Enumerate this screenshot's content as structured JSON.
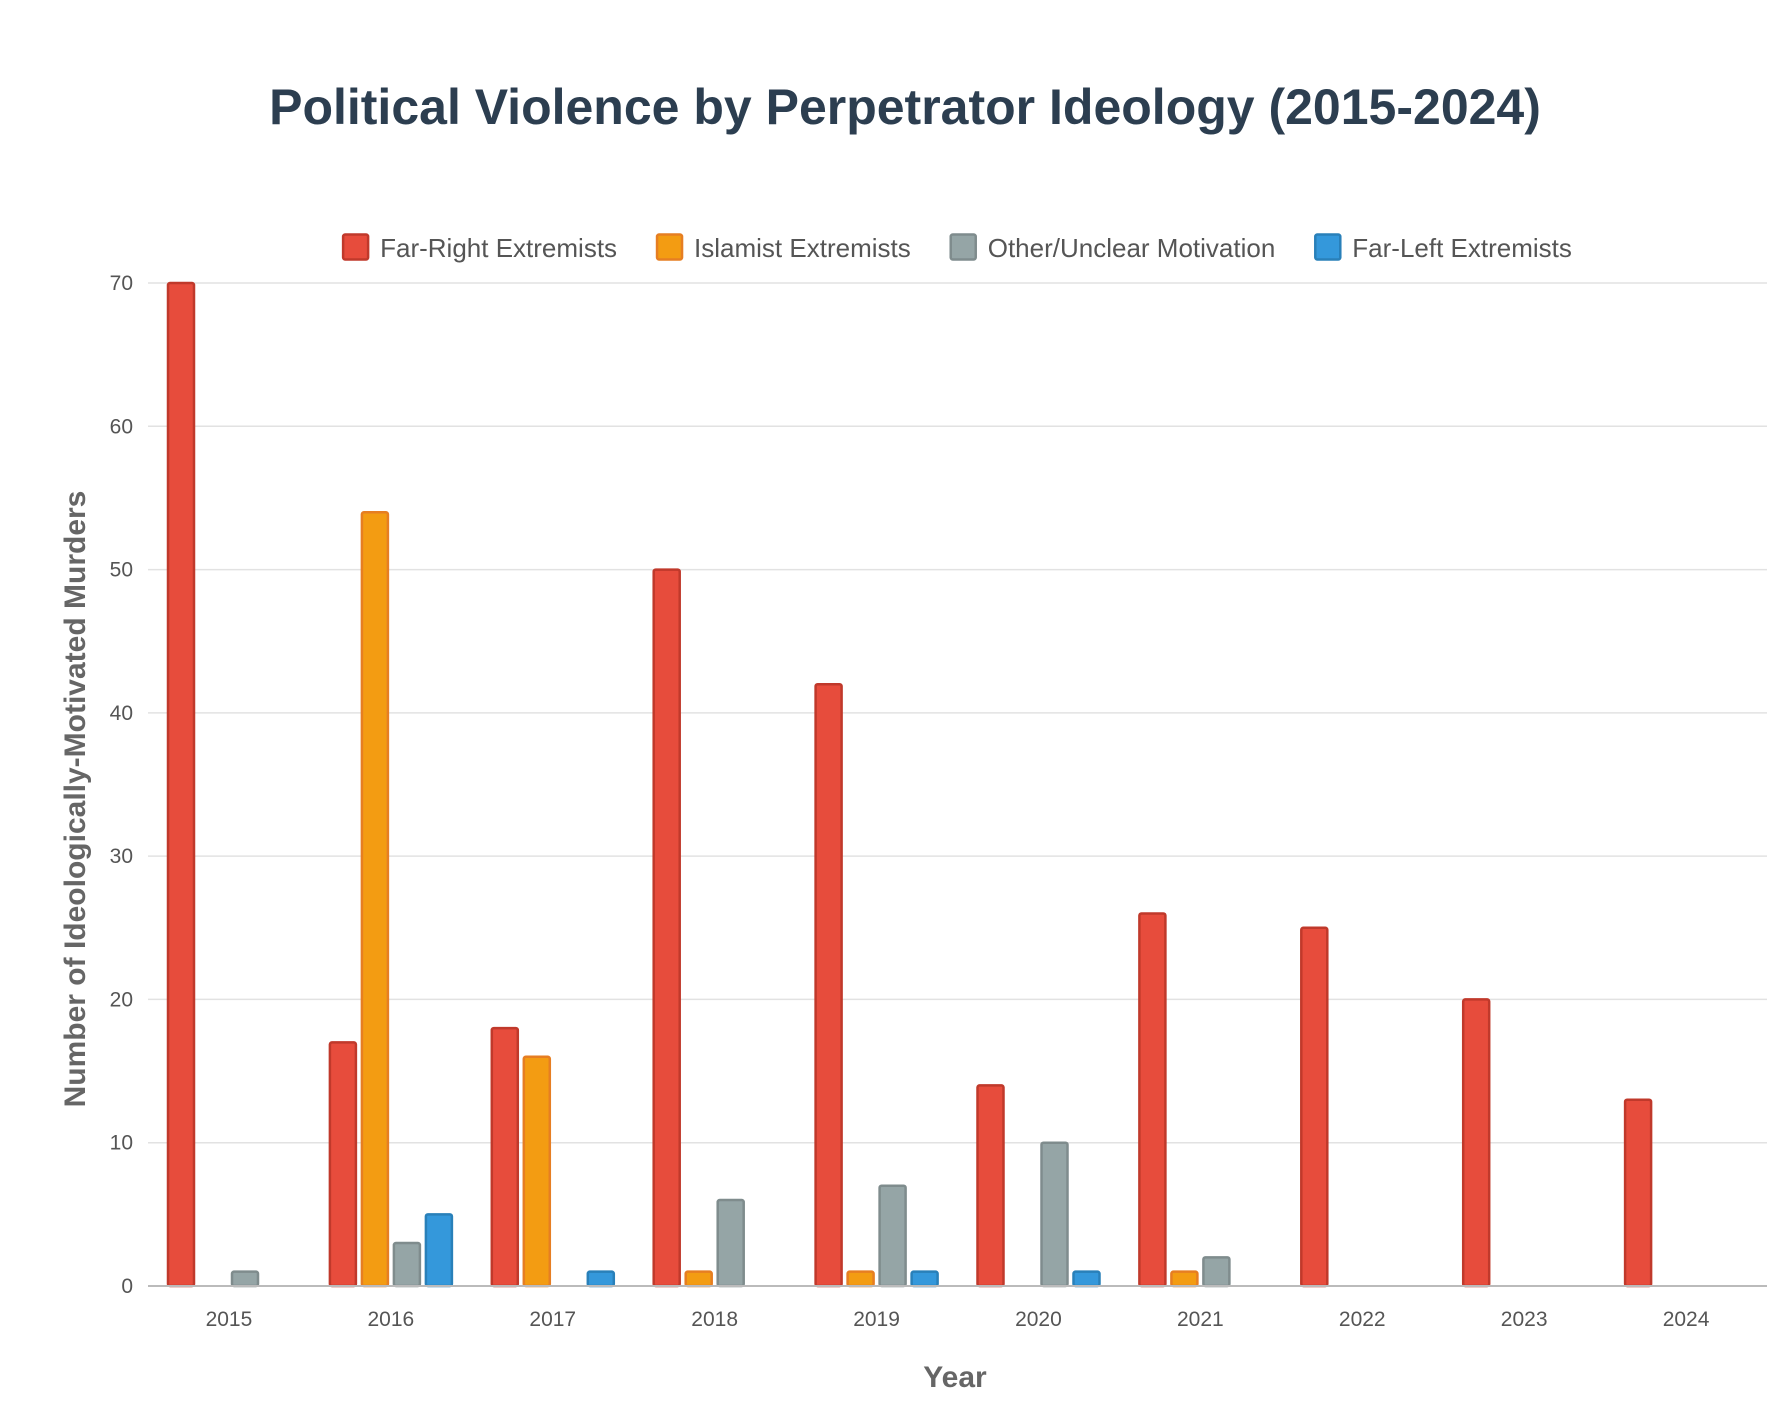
{
  "chart_data": {
    "type": "bar",
    "title": "Political Violence by Perpetrator Ideology (2015-2024)",
    "xlabel": "Year",
    "ylabel": "Number of Ideologically-Motivated Murders",
    "categories": [
      "2015",
      "2016",
      "2017",
      "2018",
      "2019",
      "2020",
      "2021",
      "2022",
      "2023",
      "2024"
    ],
    "ylim": [
      0,
      70
    ],
    "yticks": [
      0,
      10,
      20,
      30,
      40,
      50,
      60,
      70
    ],
    "grid": true,
    "legend_position": "top-center",
    "series": [
      {
        "name": "Far-Right Extremists",
        "color": "#e74c3c",
        "border": "#c0392b",
        "values": [
          70,
          17,
          18,
          50,
          42,
          14,
          26,
          25,
          20,
          13
        ]
      },
      {
        "name": "Islamist Extremists",
        "color": "#f39c12",
        "border": "#e67e22",
        "values": [
          0,
          54,
          16,
          1,
          1,
          0,
          1,
          0,
          0,
          0
        ]
      },
      {
        "name": "Other/Unclear Motivation",
        "color": "#95a5a6",
        "border": "#7f8c8d",
        "values": [
          1,
          3,
          0,
          6,
          7,
          10,
          2,
          0,
          0,
          0
        ]
      },
      {
        "name": "Far-Left Extremists",
        "color": "#3498db",
        "border": "#2980b9",
        "values": [
          0,
          5,
          1,
          0,
          1,
          1,
          0,
          0,
          0,
          0
        ]
      }
    ]
  }
}
